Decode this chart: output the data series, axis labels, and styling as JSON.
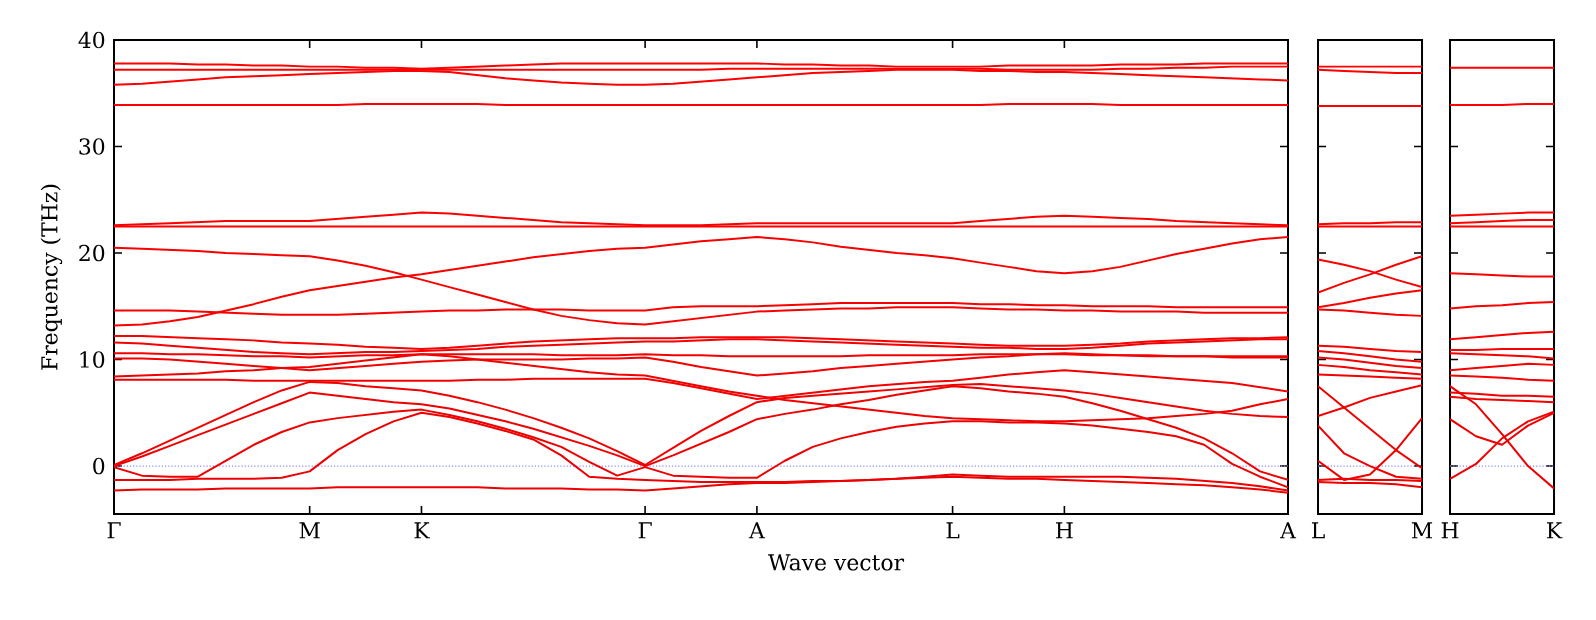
{
  "chart_data": [
    {
      "type": "line",
      "ylabel": "Frequency (THz)",
      "xlabel": "Wave vector",
      "ylim": [
        -4.5,
        40
      ],
      "yticks": [
        0,
        10,
        20,
        30,
        40
      ],
      "categories": [
        "Γ",
        null,
        null,
        null,
        null,
        null,
        null,
        "M",
        null,
        null,
        null,
        "K",
        null,
        null,
        null,
        null,
        null,
        null,
        null,
        "Γ",
        null,
        null,
        null,
        "A",
        null,
        null,
        null,
        null,
        null,
        null,
        "L",
        null,
        null,
        null,
        "H",
        null,
        null,
        null,
        null,
        null,
        null,
        null,
        "A"
      ],
      "ref_lines": [
        {
          "axis": "y",
          "value": 0,
          "color": "#8888ff",
          "line_style": "dotted"
        }
      ],
      "series": [
        {
          "color": "#ff0000",
          "values": [
            37.8,
            37.8,
            37.8,
            37.7,
            37.7,
            37.6,
            37.6,
            37.5,
            37.5,
            37.4,
            37.4,
            37.3,
            37.4,
            37.5,
            37.6,
            37.7,
            37.8,
            37.8,
            37.8,
            37.8,
            37.8,
            37.8,
            37.8,
            37.8,
            37.7,
            37.7,
            37.6,
            37.6,
            37.5,
            37.5,
            37.5,
            37.5,
            37.6,
            37.6,
            37.6,
            37.6,
            37.7,
            37.7,
            37.7,
            37.8,
            37.8,
            37.8,
            37.8
          ]
        },
        {
          "color": "#fe0000",
          "values": [
            37.2,
            37.2,
            37.2,
            37.2,
            37.2,
            37.2,
            37.2,
            37.2,
            37.2,
            37.2,
            37.2,
            37.2,
            37.2,
            37.2,
            37.2,
            37.2,
            37.2,
            37.2,
            37.2,
            37.2,
            37.2,
            37.2,
            37.3,
            37.3,
            37.3,
            37.3,
            37.3,
            37.3,
            37.3,
            37.3,
            37.3,
            37.3,
            37.2,
            37.2,
            37.2,
            37.2,
            37.3,
            37.3,
            37.4,
            37.4,
            37.5,
            37.5,
            37.5
          ]
        },
        {
          "color": "#fd0000",
          "values": [
            35.8,
            35.9,
            36.1,
            36.3,
            36.5,
            36.6,
            36.7,
            36.8,
            36.9,
            37.0,
            37.1,
            37.1,
            37.0,
            36.7,
            36.4,
            36.2,
            36.0,
            35.9,
            35.8,
            35.8,
            35.9,
            36.1,
            36.3,
            36.5,
            36.7,
            36.9,
            37.0,
            37.1,
            37.2,
            37.2,
            37.2,
            37.1,
            37.1,
            37.0,
            37.0,
            36.9,
            36.8,
            36.7,
            36.6,
            36.5,
            36.4,
            36.3,
            36.2
          ]
        },
        {
          "color": "#fc0000",
          "values": [
            33.9,
            33.9,
            33.9,
            33.9,
            33.9,
            33.9,
            33.9,
            33.9,
            33.9,
            34.0,
            34.0,
            34.0,
            34.0,
            34.0,
            33.9,
            33.9,
            33.9,
            33.9,
            33.9,
            33.9,
            33.9,
            33.9,
            33.9,
            33.9,
            33.9,
            33.9,
            33.9,
            33.9,
            33.9,
            33.9,
            33.9,
            33.9,
            34.0,
            34.0,
            34.0,
            34.0,
            33.9,
            33.9,
            33.9,
            33.9,
            33.9,
            33.9,
            33.9
          ]
        },
        {
          "color": "#fb0000",
          "values": [
            22.5,
            22.5,
            22.5,
            22.5,
            22.5,
            22.5,
            22.5,
            22.5,
            22.5,
            22.5,
            22.5,
            22.5,
            22.5,
            22.5,
            22.5,
            22.5,
            22.5,
            22.5,
            22.5,
            22.5,
            22.5,
            22.5,
            22.5,
            22.5,
            22.5,
            22.5,
            22.5,
            22.5,
            22.5,
            22.5,
            22.5,
            22.5,
            22.5,
            22.5,
            22.5,
            22.5,
            22.5,
            22.5,
            22.5,
            22.5,
            22.5,
            22.5,
            22.5
          ]
        },
        {
          "color": "#fa0000",
          "values": [
            22.6,
            22.7,
            22.8,
            22.9,
            23.0,
            23.0,
            23.0,
            23.0,
            23.2,
            23.4,
            23.6,
            23.8,
            23.7,
            23.5,
            23.3,
            23.1,
            22.9,
            22.8,
            22.7,
            22.6,
            22.6,
            22.6,
            22.7,
            22.8,
            22.8,
            22.8,
            22.8,
            22.8,
            22.8,
            22.8,
            22.8,
            23.0,
            23.2,
            23.4,
            23.5,
            23.4,
            23.3,
            23.2,
            23.0,
            22.9,
            22.8,
            22.7,
            22.6
          ]
        },
        {
          "color": "#f90000",
          "values": [
            20.5,
            20.4,
            20.3,
            20.2,
            20.0,
            19.9,
            19.8,
            19.7,
            19.3,
            18.8,
            18.2,
            17.5,
            16.8,
            16.1,
            15.4,
            14.7,
            14.1,
            13.7,
            13.4,
            13.3,
            13.6,
            13.9,
            14.2,
            14.5,
            14.6,
            14.7,
            14.8,
            14.8,
            14.9,
            14.9,
            14.9,
            14.8,
            14.7,
            14.7,
            14.6,
            14.6,
            14.5,
            14.5,
            14.5,
            14.4,
            14.4,
            14.4,
            14.4
          ]
        },
        {
          "color": "#f80000",
          "values": [
            13.2,
            13.3,
            13.6,
            14.0,
            14.6,
            15.2,
            15.9,
            16.5,
            16.9,
            17.3,
            17.7,
            18.0,
            18.4,
            18.8,
            19.2,
            19.6,
            19.9,
            20.2,
            20.4,
            20.5,
            20.8,
            21.1,
            21.3,
            21.5,
            21.3,
            21.0,
            20.6,
            20.3,
            20.0,
            19.8,
            19.5,
            19.1,
            18.7,
            18.3,
            18.1,
            18.3,
            18.7,
            19.3,
            19.9,
            20.4,
            20.9,
            21.3,
            21.5
          ]
        },
        {
          "color": "#f70000",
          "values": [
            14.6,
            14.6,
            14.6,
            14.5,
            14.4,
            14.3,
            14.2,
            14.2,
            14.2,
            14.3,
            14.4,
            14.5,
            14.6,
            14.6,
            14.7,
            14.7,
            14.7,
            14.6,
            14.6,
            14.6,
            14.9,
            15.0,
            15.0,
            15.0,
            15.1,
            15.2,
            15.3,
            15.3,
            15.3,
            15.3,
            15.3,
            15.2,
            15.2,
            15.1,
            15.1,
            15.0,
            15.0,
            15.0,
            14.9,
            14.9,
            14.9,
            14.9,
            14.9
          ]
        },
        {
          "color": "#f60000",
          "values": [
            12.2,
            12.2,
            12.1,
            12.0,
            11.9,
            11.8,
            11.6,
            11.5,
            11.4,
            11.2,
            11.1,
            11.0,
            11.1,
            11.3,
            11.5,
            11.7,
            11.8,
            11.9,
            12.0,
            12.0,
            12.0,
            12.1,
            12.1,
            12.1,
            12.1,
            12.0,
            11.9,
            11.8,
            11.7,
            11.6,
            11.5,
            11.4,
            11.3,
            11.3,
            11.3,
            11.4,
            11.5,
            11.7,
            11.8,
            11.9,
            12.0,
            12.0,
            12.1
          ]
        },
        {
          "color": "#f50000",
          "values": [
            11.6,
            11.5,
            11.3,
            11.1,
            10.9,
            10.7,
            10.6,
            10.5,
            10.6,
            10.7,
            10.7,
            10.8,
            10.9,
            11.0,
            11.2,
            11.3,
            11.4,
            11.5,
            11.6,
            11.7,
            11.7,
            11.8,
            11.9,
            11.9,
            11.8,
            11.7,
            11.6,
            11.5,
            11.4,
            11.3,
            11.2,
            11.1,
            11.1,
            11.0,
            11.0,
            11.1,
            11.3,
            11.5,
            11.6,
            11.7,
            11.8,
            11.9,
            11.9
          ]
        },
        {
          "color": "#f40000",
          "values": [
            10.6,
            10.6,
            10.5,
            10.5,
            10.4,
            10.3,
            10.3,
            10.2,
            10.3,
            10.4,
            10.4,
            10.5,
            10.5,
            10.5,
            10.5,
            10.5,
            10.4,
            10.4,
            10.4,
            10.5,
            10.4,
            10.4,
            10.3,
            10.3,
            10.3,
            10.3,
            10.3,
            10.4,
            10.4,
            10.4,
            10.4,
            10.5,
            10.5,
            10.5,
            10.5,
            10.4,
            10.4,
            10.3,
            10.3,
            10.3,
            10.2,
            10.2,
            10.2
          ]
        },
        {
          "color": "#f30000",
          "values": [
            10.1,
            10.1,
            10.0,
            9.8,
            9.6,
            9.4,
            9.2,
            9.0,
            9.2,
            9.4,
            9.6,
            9.8,
            9.9,
            10.0,
            10.0,
            10.0,
            10.0,
            10.1,
            10.1,
            10.2,
            9.8,
            9.3,
            8.9,
            8.5,
            8.7,
            8.9,
            9.2,
            9.4,
            9.6,
            9.8,
            10.0,
            10.2,
            10.3,
            10.5,
            10.6,
            10.5,
            10.4,
            10.4,
            10.3,
            10.3,
            10.3,
            10.3,
            10.3
          ]
        },
        {
          "color": "#f20000",
          "values": [
            8.1,
            8.1,
            8.1,
            8.1,
            8.1,
            8.0,
            8.0,
            8.0,
            8.0,
            8.0,
            8.0,
            8.0,
            8.0,
            8.1,
            8.1,
            8.2,
            8.2,
            8.2,
            8.2,
            8.2,
            7.8,
            7.3,
            6.8,
            6.3,
            6.6,
            6.9,
            7.2,
            7.5,
            7.7,
            7.9,
            8.0,
            8.3,
            8.6,
            8.8,
            9.0,
            8.8,
            8.6,
            8.4,
            8.2,
            8.0,
            7.8,
            7.4,
            7.0
          ]
        },
        {
          "color": "#f10000",
          "values": [
            8.4,
            8.5,
            8.6,
            8.7,
            8.9,
            9.0,
            9.2,
            9.3,
            9.6,
            9.9,
            10.2,
            10.5,
            10.3,
            10.0,
            9.7,
            9.4,
            9.1,
            8.8,
            8.6,
            8.5,
            8.0,
            7.5,
            7.0,
            6.6,
            6.2,
            5.9,
            5.6,
            5.3,
            5.0,
            4.7,
            4.5,
            4.4,
            4.3,
            4.2,
            4.2,
            4.3,
            4.4,
            4.5,
            4.7,
            4.9,
            5.2,
            5.8,
            6.3
          ]
        },
        {
          "color": "#f00000",
          "values": [
            0.1,
            1.2,
            2.4,
            3.6,
            4.8,
            6.0,
            7.1,
            7.9,
            7.8,
            7.5,
            7.3,
            7.1,
            6.6,
            6.0,
            5.3,
            4.5,
            3.6,
            2.6,
            1.4,
            0.1,
            1.7,
            3.3,
            4.7,
            6.0,
            6.4,
            6.6,
            6.8,
            7.0,
            7.2,
            7.4,
            7.6,
            7.7,
            7.5,
            7.3,
            7.1,
            6.8,
            6.4,
            6.0,
            5.6,
            5.2,
            4.9,
            4.7,
            4.6
          ]
        },
        {
          "color": "#ef0000",
          "values": [
            0.0,
            0.9,
            1.9,
            2.9,
            3.9,
            4.9,
            5.9,
            6.9,
            6.6,
            6.3,
            6.0,
            5.8,
            5.4,
            4.8,
            4.2,
            3.5,
            2.7,
            1.9,
            1.0,
            0.0,
            1.0,
            2.1,
            3.2,
            4.4,
            4.9,
            5.3,
            5.8,
            6.2,
            6.7,
            7.1,
            7.5,
            7.3,
            7.0,
            6.8,
            6.5,
            5.9,
            5.2,
            4.4,
            3.6,
            2.6,
            1.2,
            -0.5,
            -1.3
          ]
        },
        {
          "color": "#ee0000",
          "values": [
            -0.1,
            -0.9,
            -1.0,
            -1.0,
            0.5,
            2.0,
            3.2,
            4.1,
            4.5,
            4.8,
            5.1,
            5.3,
            4.8,
            4.2,
            3.5,
            2.7,
            1.8,
            0.4,
            -0.9,
            -0.1,
            -0.9,
            -1.0,
            -1.1,
            -1.1,
            0.5,
            1.8,
            2.6,
            3.2,
            3.7,
            4.0,
            4.2,
            4.2,
            4.1,
            4.1,
            4.0,
            3.8,
            3.5,
            3.2,
            2.8,
            2.0,
            0.2,
            -1.0,
            -2.0
          ]
        },
        {
          "color": "#ed0000",
          "values": [
            -1.3,
            -1.3,
            -1.3,
            -1.2,
            -1.2,
            -1.2,
            -1.1,
            -0.5,
            1.5,
            3.0,
            4.2,
            5.0,
            4.6,
            4.0,
            3.3,
            2.5,
            1.0,
            -1.0,
            -1.2,
            -1.3,
            -1.4,
            -1.5,
            -1.5,
            -1.5,
            -1.5,
            -1.4,
            -1.4,
            -1.3,
            -1.2,
            -1.0,
            -0.8,
            -0.9,
            -1.0,
            -1.0,
            -1.0,
            -1.0,
            -1.0,
            -1.1,
            -1.2,
            -1.4,
            -1.6,
            -1.9,
            -2.3
          ]
        },
        {
          "color": "#ec0000",
          "values": [
            -2.3,
            -2.2,
            -2.2,
            -2.2,
            -2.1,
            -2.1,
            -2.1,
            -2.1,
            -2.0,
            -2.0,
            -2.0,
            -2.0,
            -2.0,
            -2.0,
            -2.1,
            -2.1,
            -2.1,
            -2.2,
            -2.2,
            -2.3,
            -2.1,
            -1.9,
            -1.7,
            -1.6,
            -1.6,
            -1.5,
            -1.4,
            -1.3,
            -1.2,
            -1.1,
            -1.0,
            -1.1,
            -1.2,
            -1.2,
            -1.3,
            -1.4,
            -1.5,
            -1.6,
            -1.7,
            -1.8,
            -2.0,
            -2.2,
            -2.5
          ]
        }
      ]
    },
    {
      "type": "line",
      "tick_labels": "x",
      "ylim": [
        -4.5,
        40
      ],
      "yticks": [
        0,
        10,
        20,
        30,
        40
      ],
      "categories": [
        "L",
        null,
        null,
        null,
        "M"
      ],
      "ref_lines": [
        {
          "axis": "y",
          "value": 0,
          "color": "#8888ff",
          "line_style": "dotted"
        }
      ],
      "series": [
        {
          "color": "#ff0000",
          "values": [
            37.5,
            37.5,
            37.5,
            37.5,
            37.5
          ]
        },
        {
          "color": "#fe0000",
          "values": [
            37.2,
            37.1,
            37.0,
            36.9,
            36.9
          ]
        },
        {
          "color": "#fd0000",
          "values": [
            33.8,
            33.8,
            33.8,
            33.8,
            33.8
          ]
        },
        {
          "color": "#fc0000",
          "values": [
            22.5,
            22.5,
            22.5,
            22.5,
            22.5
          ]
        },
        {
          "color": "#fb0000",
          "values": [
            22.7,
            22.8,
            22.8,
            22.9,
            22.9
          ]
        },
        {
          "color": "#fa0000",
          "values": [
            19.4,
            18.9,
            18.3,
            17.5,
            16.8
          ]
        },
        {
          "color": "#f90000",
          "values": [
            16.3,
            17.2,
            18.0,
            18.9,
            19.7
          ]
        },
        {
          "color": "#f80000",
          "values": [
            14.9,
            15.3,
            15.8,
            16.2,
            16.5
          ]
        },
        {
          "color": "#f70000",
          "values": [
            14.7,
            14.6,
            14.4,
            14.2,
            14.1
          ]
        },
        {
          "color": "#f60000",
          "values": [
            11.3,
            11.2,
            11.0,
            10.8,
            10.7
          ]
        },
        {
          "color": "#f50000",
          "values": [
            10.8,
            10.6,
            10.3,
            10.0,
            9.8
          ]
        },
        {
          "color": "#f40000",
          "values": [
            10.2,
            10.0,
            9.7,
            9.4,
            9.2
          ]
        },
        {
          "color": "#f30000",
          "values": [
            9.5,
            9.3,
            9.0,
            8.8,
            8.6
          ]
        },
        {
          "color": "#f20000",
          "values": [
            8.6,
            8.5,
            8.4,
            8.3,
            8.2
          ]
        },
        {
          "color": "#f10000",
          "values": [
            7.5,
            5.5,
            3.5,
            1.5,
            -0.2
          ]
        },
        {
          "color": "#f00000",
          "values": [
            4.7,
            5.5,
            6.4,
            7.0,
            7.6
          ]
        },
        {
          "color": "#ef0000",
          "values": [
            3.8,
            1.2,
            0.0,
            -1.0,
            -1.2
          ]
        },
        {
          "color": "#ee0000",
          "values": [
            0.5,
            -1.3,
            -0.8,
            1.5,
            4.5
          ]
        },
        {
          "color": "#ed0000",
          "values": [
            -1.5,
            -1.6,
            -1.6,
            -1.7,
            -2.0
          ]
        },
        {
          "color": "#ec0000",
          "values": [
            -1.3,
            -1.2,
            -1.3,
            -1.3,
            -1.4
          ]
        }
      ]
    },
    {
      "type": "line",
      "tick_labels": "x",
      "ylim": [
        -4.5,
        40
      ],
      "yticks": [
        0,
        10,
        20,
        30,
        40
      ],
      "categories": [
        "H",
        null,
        null,
        null,
        "K"
      ],
      "ref_lines": [
        {
          "axis": "y",
          "value": 0,
          "color": "#8888ff",
          "line_style": "dotted"
        }
      ],
      "series": [
        {
          "color": "#ff0000",
          "values": [
            37.4,
            37.4,
            37.4,
            37.4,
            37.4
          ]
        },
        {
          "color": "#fe0000",
          "values": [
            33.9,
            33.9,
            33.9,
            34.0,
            34.0
          ]
        },
        {
          "color": "#fd0000",
          "values": [
            23.5,
            23.6,
            23.7,
            23.8,
            23.8
          ]
        },
        {
          "color": "#fc0000",
          "values": [
            22.8,
            22.9,
            23.0,
            23.1,
            23.1
          ]
        },
        {
          "color": "#fb0000",
          "values": [
            22.5,
            22.5,
            22.5,
            22.5,
            22.5
          ]
        },
        {
          "color": "#fa0000",
          "values": [
            18.1,
            18.0,
            17.9,
            17.8,
            17.8
          ]
        },
        {
          "color": "#f90000",
          "values": [
            14.8,
            15.0,
            15.1,
            15.3,
            15.4
          ]
        },
        {
          "color": "#f80000",
          "values": [
            11.9,
            12.1,
            12.3,
            12.5,
            12.6
          ]
        },
        {
          "color": "#f70000",
          "values": [
            10.9,
            10.9,
            11.0,
            11.0,
            11.0
          ]
        },
        {
          "color": "#f60000",
          "values": [
            10.6,
            10.5,
            10.4,
            10.3,
            10.1
          ]
        },
        {
          "color": "#f50000",
          "values": [
            9.0,
            9.2,
            9.4,
            9.6,
            9.5
          ]
        },
        {
          "color": "#f40000",
          "values": [
            8.5,
            8.4,
            8.3,
            8.1,
            8.0
          ]
        },
        {
          "color": "#f30000",
          "values": [
            6.9,
            6.8,
            6.6,
            6.6,
            6.5
          ]
        },
        {
          "color": "#f20000",
          "values": [
            6.5,
            6.3,
            6.2,
            6.1,
            6.0
          ]
        },
        {
          "color": "#f10000",
          "values": [
            4.4,
            2.8,
            2.0,
            3.8,
            5.0
          ]
        },
        {
          "color": "#f00000",
          "values": [
            -1.2,
            0.2,
            2.6,
            4.2,
            5.1
          ]
        },
        {
          "color": "#ef0000",
          "values": [
            7.5,
            5.8,
            3.0,
            0.0,
            -2.1
          ]
        }
      ]
    }
  ]
}
